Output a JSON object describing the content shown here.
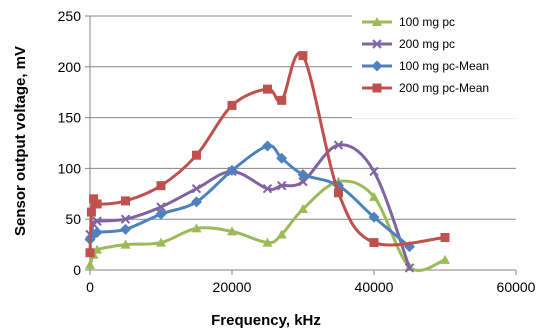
{
  "chart_data": {
    "type": "line",
    "title": "",
    "xlabel": "Frequency, kHz",
    "ylabel": "Sensor  output voltage, mV",
    "xlim": [
      0,
      60000
    ],
    "ylim": [
      0,
      250
    ],
    "x_ticks": [
      0,
      20000,
      40000,
      60000
    ],
    "x_tick_labels": [
      "0",
      "20000",
      "40000",
      "60000"
    ],
    "y_ticks": [
      0,
      50,
      100,
      150,
      200,
      250
    ],
    "y_tick_labels": [
      "0",
      "50",
      "100",
      "150",
      "200",
      "250"
    ],
    "grid": "horizontal",
    "legend_position": "top-right",
    "series": [
      {
        "name": "100 mg pc",
        "color": "#9bbb59",
        "marker": "triangle",
        "x": [
          0,
          500,
          1000,
          5000,
          10000,
          15000,
          20000,
          25000,
          27000,
          30000,
          35000,
          40000,
          45000,
          50000
        ],
        "y": [
          5,
          15,
          20,
          25,
          27,
          41,
          38,
          27,
          35,
          60,
          87,
          72,
          3,
          10
        ]
      },
      {
        "name": "200 mg pc",
        "color": "#8064a2",
        "marker": "x",
        "x": [
          0,
          500,
          1000,
          5000,
          10000,
          15000,
          20000,
          25000,
          27000,
          30000,
          35000,
          40000,
          45000
        ],
        "y": [
          35,
          45,
          48,
          50,
          62,
          80,
          97,
          80,
          83,
          87,
          123,
          97,
          2
        ]
      },
      {
        "name": "100 mg pc-Mean",
        "color": "#4f81bd",
        "marker": "diamond",
        "x": [
          0,
          500,
          1000,
          5000,
          10000,
          15000,
          20000,
          25000,
          27000,
          30000,
          35000,
          40000,
          45000
        ],
        "y": [
          30,
          35,
          37,
          40,
          55,
          67,
          98,
          122,
          110,
          94,
          83,
          52,
          23
        ]
      },
      {
        "name": "200 mg pc-Mean",
        "color": "#c0504d",
        "marker": "square",
        "x": [
          0,
          200,
          500,
          1000,
          5000,
          10000,
          15000,
          20000,
          25000,
          27000,
          30000,
          35000,
          40000,
          50000
        ],
        "y": [
          17,
          57,
          70,
          65,
          68,
          83,
          113,
          162,
          178,
          167,
          211,
          76,
          27,
          32
        ]
      }
    ]
  }
}
